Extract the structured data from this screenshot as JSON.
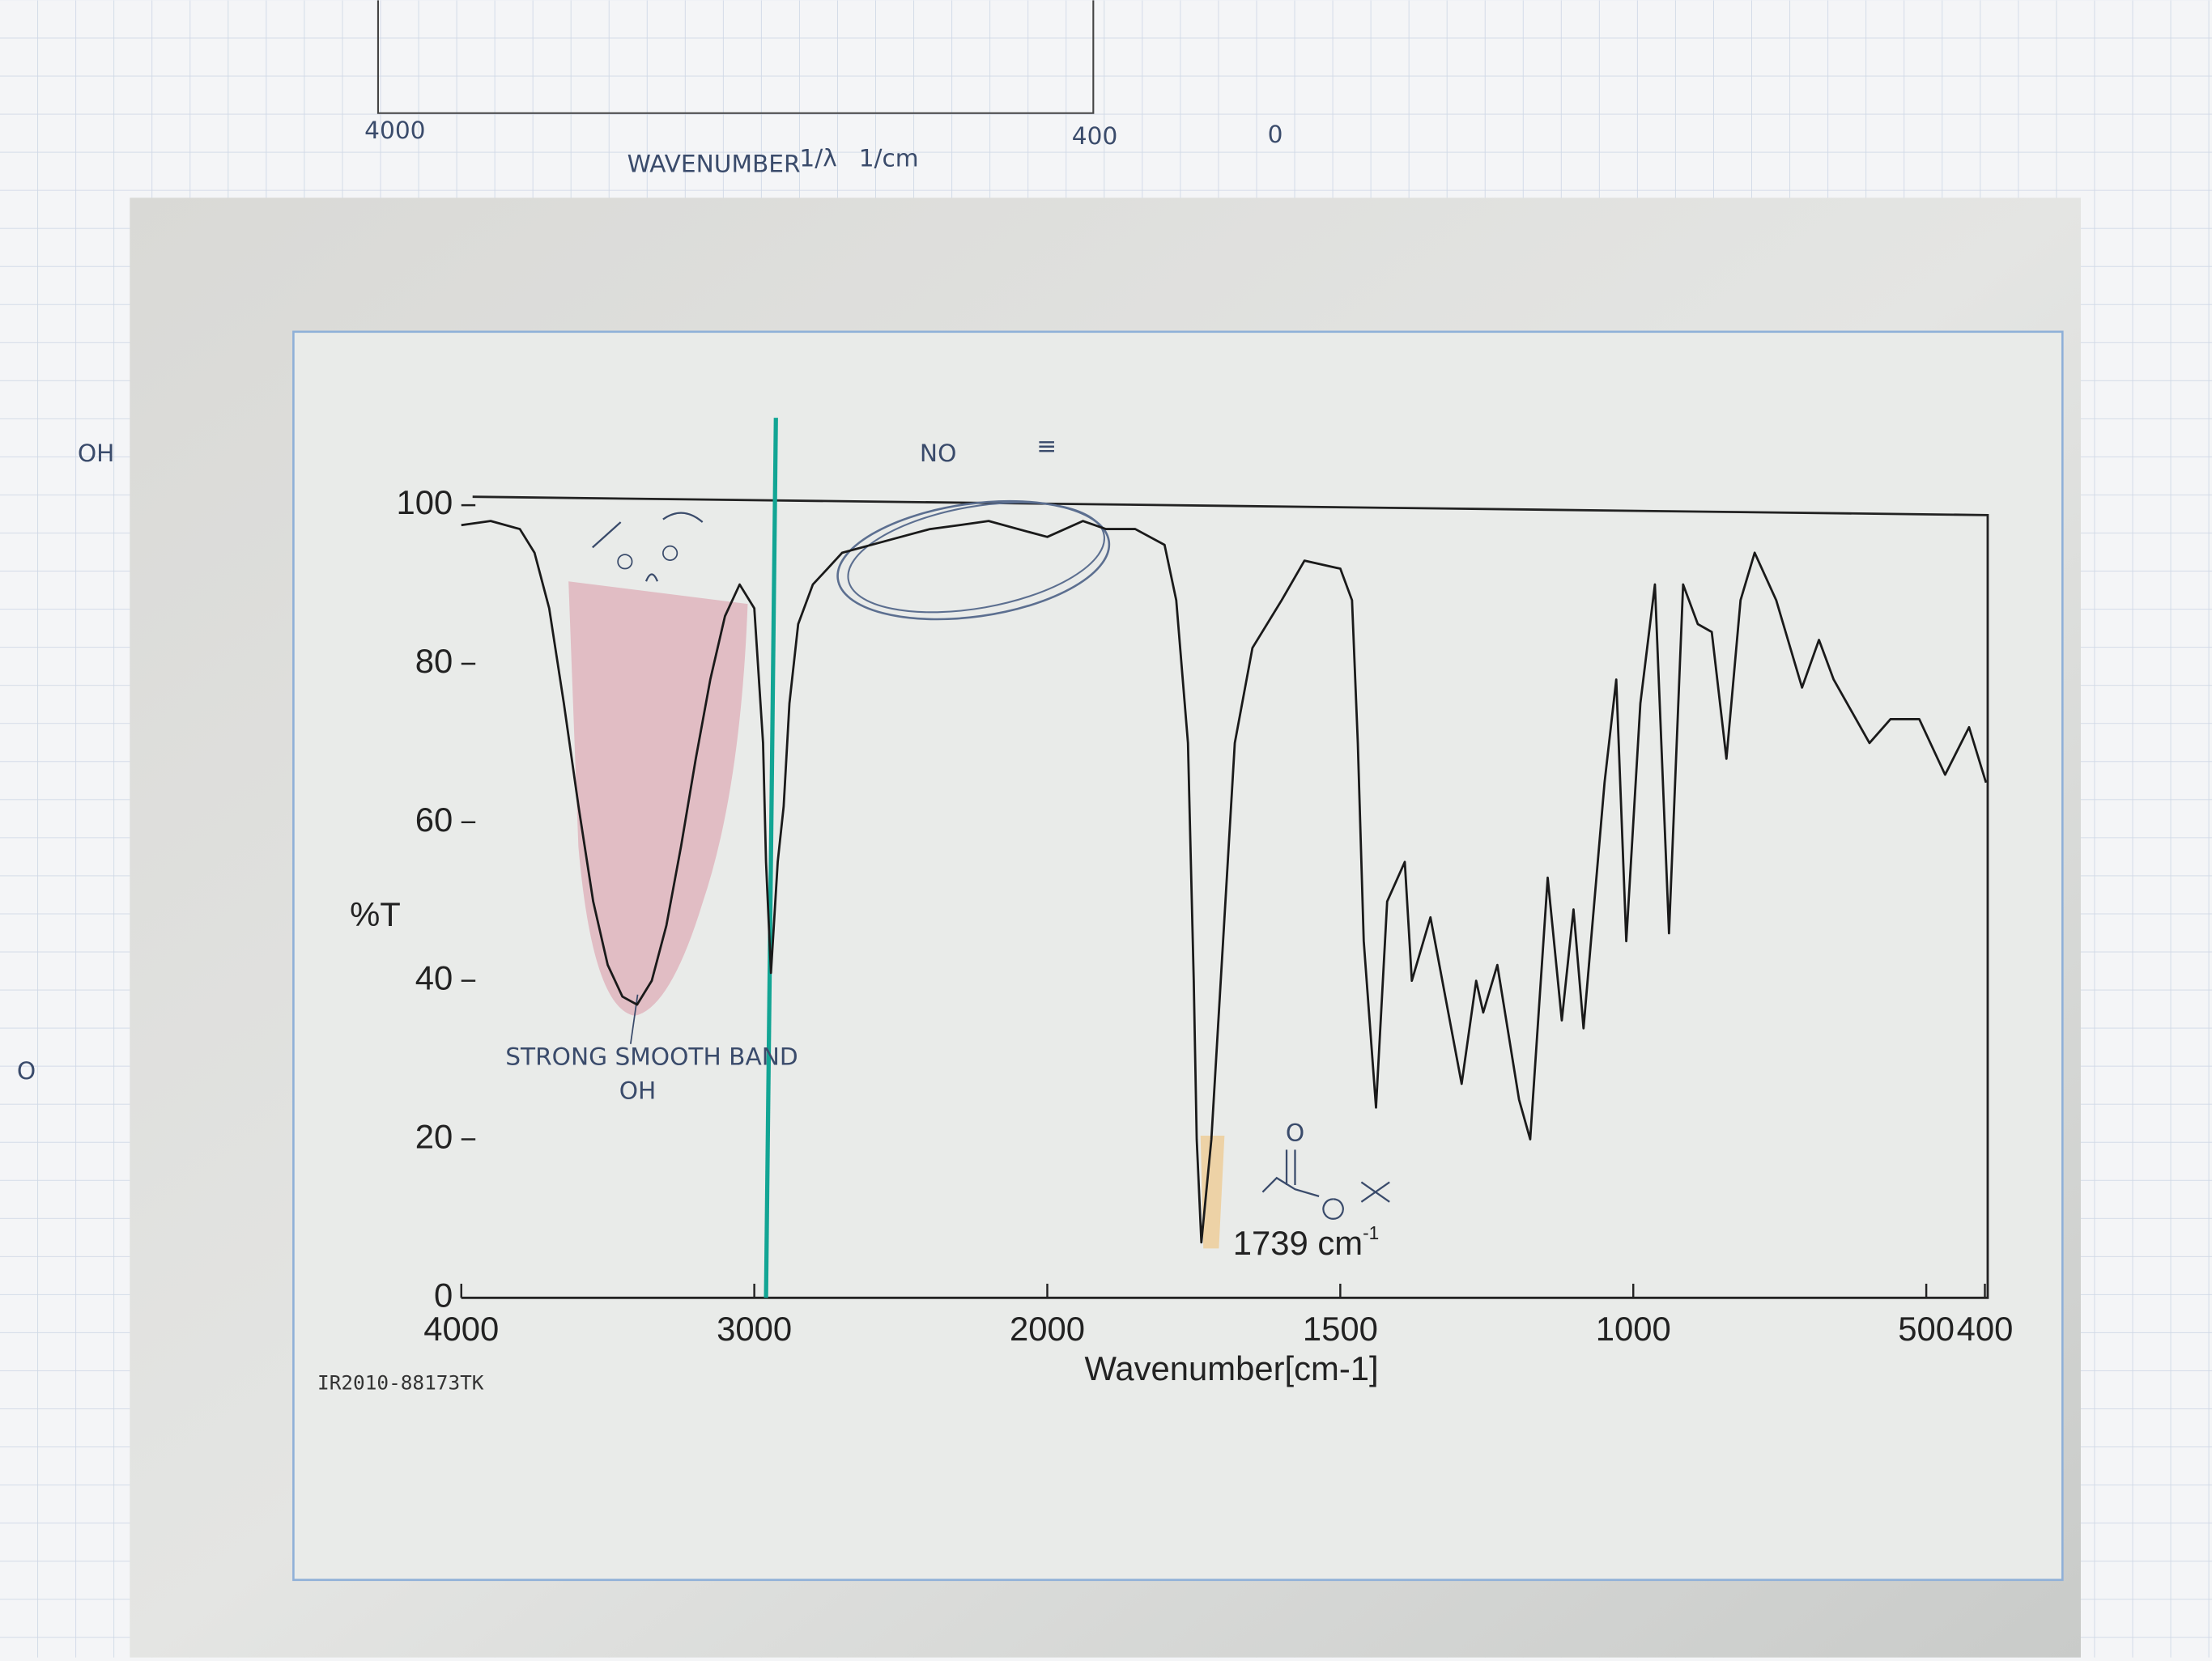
{
  "chart_data": {
    "type": "line",
    "title": "IR2010-88173TK",
    "xlabel": "Wavenumber[cm-1]",
    "ylabel": "%T",
    "xlim": [
      4000,
      400
    ],
    "xticks": [
      4000,
      3000,
      2000,
      1500,
      1000,
      500,
      400
    ],
    "xscale": {
      "type": "split",
      "break": 2000
    },
    "ylim": [
      0,
      100
    ],
    "yticks": [
      0,
      20,
      40,
      60,
      80,
      100
    ],
    "color": "#1a1a1a",
    "x": [
      4000,
      3900,
      3800,
      3750,
      3700,
      3650,
      3600,
      3550,
      3500,
      3450,
      3400,
      3350,
      3300,
      3250,
      3200,
      3150,
      3100,
      3050,
      3000,
      2970,
      2960,
      2943,
      2920,
      2900,
      2880,
      2850,
      2800,
      2750,
      2700,
      2600,
      2500,
      2400,
      2300,
      2200,
      2100,
      2000,
      1939,
      1900,
      1850,
      1800,
      1780,
      1760,
      1750,
      1745,
      1737,
      1720,
      1700,
      1680,
      1650,
      1600,
      1561,
      1500,
      1480,
      1470,
      1460,
      1439,
      1420,
      1390,
      1378,
      1346,
      1293,
      1268,
      1256,
      1232,
      1195,
      1176,
      1146,
      1122,
      1102,
      1085,
      1049,
      1029,
      1012,
      988,
      963,
      939,
      915,
      890,
      866,
      841,
      817,
      793,
      756,
      712,
      683,
      658,
      597,
      561,
      512,
      468,
      427,
      398
    ],
    "values": [
      97.5,
      98,
      97,
      94,
      87,
      75,
      62,
      50,
      42,
      38,
      37,
      40,
      47,
      57,
      68,
      78,
      86,
      90,
      87,
      70,
      55,
      41,
      55,
      62,
      75,
      85,
      90,
      92,
      94,
      95,
      96,
      97,
      97.5,
      98,
      97,
      96,
      98,
      97,
      97,
      95,
      88,
      70,
      40,
      20,
      7,
      20,
      45,
      70,
      82,
      88,
      93,
      92,
      88,
      70,
      45,
      24,
      50,
      55,
      40,
      48,
      27,
      40,
      36,
      42,
      25,
      20,
      53,
      35,
      49,
      34,
      65,
      78,
      45,
      75,
      90,
      46,
      90,
      85,
      84,
      68,
      88,
      94,
      88,
      77,
      83,
      78,
      70,
      73,
      73,
      66,
      72,
      65
    ],
    "annotations": [
      {
        "text": "1739 cm",
        "superscript": "-1"
      }
    ]
  },
  "notes": {
    "handwritten": [
      "NO",
      "≡",
      "STRONG SMOOTH BAND",
      "OH",
      "O",
      "OH",
      "O"
    ],
    "top_axis": {
      "labels": [
        "4000",
        "400",
        "0"
      ],
      "title": "WAVENUMBER",
      "unit": "1/cm",
      "symbol": "1/λ"
    }
  }
}
